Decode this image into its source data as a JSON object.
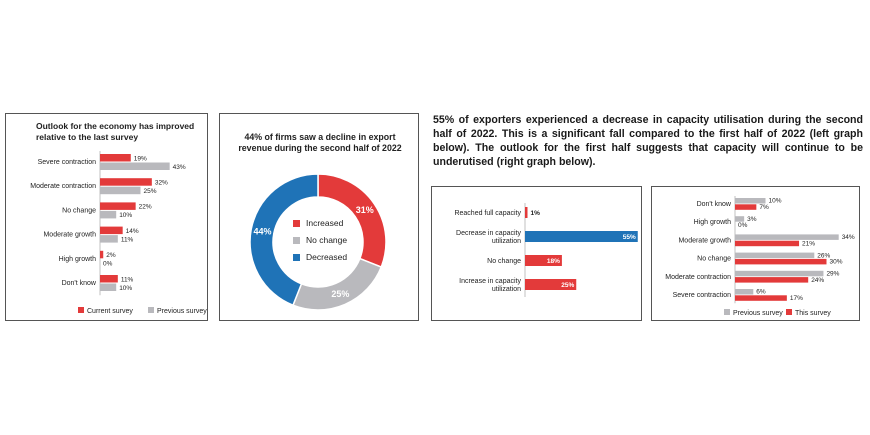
{
  "headline": "55% of exporters experienced a decrease in capacity utilisation during the second half of 2022. This is a significant fall compared to the first half of 2022 (left graph below). The outlook for the first half suggests that capacity will continue to be underutised (right graph below).",
  "colors": {
    "red": "#e33a3a",
    "grey": "#b9b9bd",
    "blue": "#1f73b7"
  },
  "chart_data": [
    {
      "type": "bar",
      "orientation": "horizontal",
      "title": "Outlook for the economy has improved relative to the last survey",
      "categories": [
        "Severe contraction",
        "Moderate contraction",
        "No change",
        "Moderate growth",
        "High growth",
        "Don't know"
      ],
      "series": [
        {
          "name": "Current survey",
          "color": "#e33a3a",
          "values": [
            19,
            32,
            22,
            14,
            2,
            11
          ],
          "labels": [
            "19%",
            "32%",
            "22%",
            "14%",
            "2%",
            "11%"
          ]
        },
        {
          "name": "Previous survey",
          "color": "#b9b9bd",
          "values": [
            43,
            25,
            10,
            11,
            0,
            10
          ],
          "labels": [
            "43%",
            "25%",
            "10%",
            "11%",
            "0%",
            "10%"
          ]
        }
      ],
      "legend": "bottom"
    },
    {
      "type": "pie",
      "donut": true,
      "title": "44% of firms saw a decline in export revenue during the second half of 2022",
      "slices": [
        {
          "name": "Increased",
          "value": 31,
          "label": "31%",
          "color": "#e33a3a"
        },
        {
          "name": "No change",
          "value": 25,
          "label": "25%",
          "color": "#b9b9bd"
        },
        {
          "name": "Decreased",
          "value": 44,
          "label": "44%",
          "color": "#1f73b7"
        }
      ],
      "legend": "center"
    },
    {
      "type": "bar",
      "orientation": "horizontal",
      "categories": [
        [
          "Reached full capacity"
        ],
        [
          "Decrease in capacity",
          "utilization"
        ],
        [
          "No change"
        ],
        [
          "Increase in capacity",
          "utilization"
        ]
      ],
      "values": [
        1,
        55,
        18,
        25
      ],
      "labels": [
        "1%",
        "55%",
        "18%",
        "25%"
      ],
      "colors": [
        "#e33a3a",
        "#1f73b7",
        "#e33a3a",
        "#e33a3a"
      ]
    },
    {
      "type": "bar",
      "orientation": "horizontal",
      "categories": [
        "Don't know",
        "High growth",
        "Moderate growth",
        "No change",
        "Moderate contraction",
        "Severe contraction"
      ],
      "series": [
        {
          "name": "Previous survey",
          "color": "#b9b9bd",
          "values": [
            10,
            3,
            34,
            26,
            29,
            6
          ],
          "labels": [
            "10%",
            "3%",
            "34%",
            "26%",
            "29%",
            "6%"
          ]
        },
        {
          "name": "This survey",
          "color": "#e33a3a",
          "values": [
            7,
            0,
            21,
            30,
            24,
            17
          ],
          "labels": [
            "7%",
            "0%",
            "21%",
            "30%",
            "24%",
            "17%"
          ]
        }
      ],
      "legend": "bottom"
    }
  ]
}
